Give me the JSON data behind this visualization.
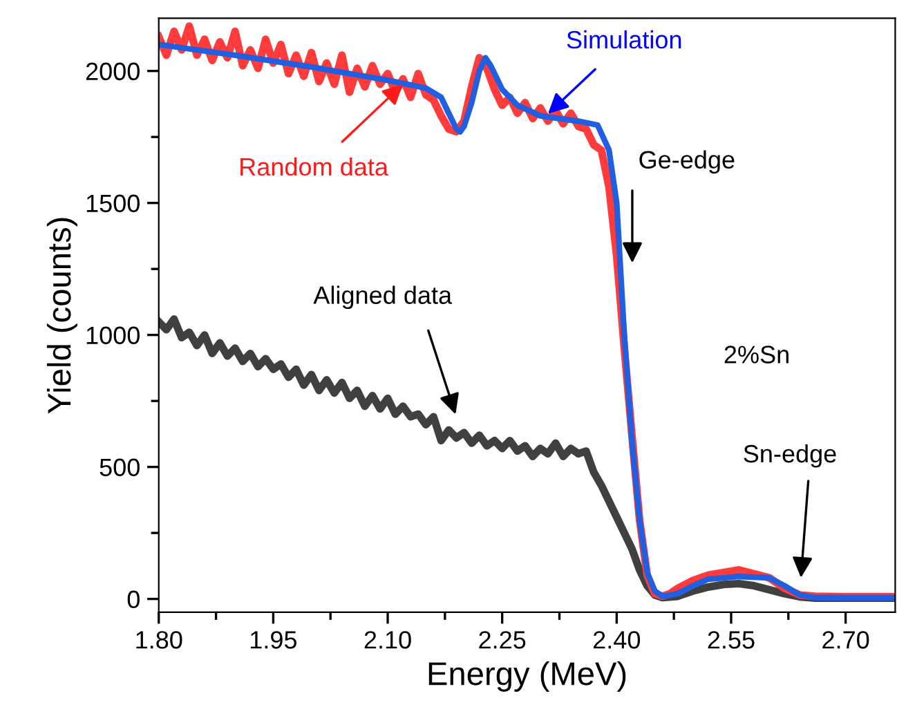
{
  "chart_data": {
    "type": "line",
    "xlabel": "Energy (MeV)",
    "ylabel": "Yield (counts)",
    "xlim": [
      1.8,
      2.765
    ],
    "xticks": [
      {
        "value": 1.8,
        "label": "1.80"
      },
      1.95,
      {
        "value": 2.1,
        "label": "2.10"
      },
      2.25,
      {
        "value": 2.4,
        "label": "2.40"
      },
      2.55,
      {
        "value": 2.7,
        "label": "2.70"
      }
    ],
    "ylim": [
      -50,
      2200
    ],
    "yticks": [
      0,
      500,
      1000,
      1500,
      2000
    ],
    "grid": false,
    "marker": "none",
    "line_style": "solid",
    "series": [
      {
        "color": "#404040",
        "x": [
          1.8,
          1.81,
          1.82,
          1.83,
          1.84,
          1.85,
          1.86,
          1.87,
          1.88,
          1.89,
          1.9,
          1.91,
          1.92,
          1.93,
          1.94,
          1.95,
          1.96,
          1.97,
          1.98,
          1.99,
          2.0,
          2.01,
          2.02,
          2.03,
          2.04,
          2.05,
          2.06,
          2.07,
          2.08,
          2.09,
          2.1,
          2.11,
          2.12,
          2.13,
          2.14,
          2.15,
          2.16,
          2.17,
          2.18,
          2.19,
          2.2,
          2.21,
          2.22,
          2.23,
          2.24,
          2.25,
          2.26,
          2.27,
          2.28,
          2.29,
          2.3,
          2.31,
          2.32,
          2.33,
          2.34,
          2.35,
          2.36,
          2.37,
          2.38,
          2.39,
          2.4,
          2.41,
          2.42,
          2.43,
          2.44,
          2.45,
          2.46,
          2.48,
          2.5,
          2.52,
          2.54,
          2.56,
          2.58,
          2.6,
          2.62,
          2.64,
          2.66,
          2.765
        ],
        "values": [
          1050,
          1020,
          1060,
          990,
          1010,
          960,
          1000,
          930,
          970,
          920,
          950,
          900,
          930,
          880,
          910,
          870,
          890,
          840,
          870,
          810,
          850,
          790,
          830,
          780,
          820,
          760,
          790,
          730,
          770,
          720,
          760,
          700,
          730,
          690,
          700,
          660,
          690,
          600,
          640,
          610,
          630,
          590,
          620,
          580,
          600,
          570,
          600,
          560,
          580,
          540,
          570,
          550,
          590,
          540,
          570,
          550,
          560,
          480,
          430,
          370,
          310,
          250,
          190,
          110,
          50,
          15,
          5,
          10,
          30,
          45,
          55,
          58,
          50,
          35,
          20,
          8,
          3,
          3
        ]
      },
      {
        "color": "#ff3b3b",
        "x": [
          1.8,
          1.81,
          1.82,
          1.83,
          1.84,
          1.85,
          1.86,
          1.87,
          1.88,
          1.89,
          1.9,
          1.91,
          1.92,
          1.93,
          1.94,
          1.95,
          1.96,
          1.97,
          1.98,
          1.99,
          2.0,
          2.01,
          2.02,
          2.03,
          2.04,
          2.05,
          2.06,
          2.07,
          2.08,
          2.09,
          2.1,
          2.11,
          2.12,
          2.13,
          2.14,
          2.15,
          2.16,
          2.17,
          2.18,
          2.19,
          2.2,
          2.21,
          2.22,
          2.23,
          2.24,
          2.25,
          2.26,
          2.27,
          2.28,
          2.29,
          2.3,
          2.31,
          2.32,
          2.33,
          2.34,
          2.35,
          2.36,
          2.37,
          2.38,
          2.39,
          2.4,
          2.41,
          2.42,
          2.43,
          2.44,
          2.45,
          2.46,
          2.47,
          2.48,
          2.5,
          2.52,
          2.54,
          2.56,
          2.58,
          2.6,
          2.62,
          2.64,
          2.66,
          2.7,
          2.765
        ],
        "values": [
          2130,
          2060,
          2150,
          2080,
          2170,
          2060,
          2120,
          2040,
          2110,
          2050,
          2150,
          2020,
          2080,
          2010,
          2120,
          2030,
          2100,
          1990,
          2060,
          1980,
          2070,
          1960,
          2030,
          1950,
          2060,
          1920,
          2010,
          1940,
          2020,
          1950,
          1990,
          1920,
          1970,
          1900,
          1990,
          1910,
          1890,
          1830,
          1780,
          1770,
          1810,
          1940,
          2050,
          2010,
          1930,
          1870,
          1900,
          1840,
          1880,
          1820,
          1860,
          1810,
          1850,
          1800,
          1840,
          1790,
          1780,
          1720,
          1700,
          1560,
          1300,
          950,
          620,
          300,
          90,
          20,
          10,
          20,
          40,
          70,
          90,
          100,
          110,
          95,
          80,
          40,
          15,
          10,
          8,
          8
        ]
      },
      {
        "color": "#1f5fe0",
        "x": [
          1.8,
          1.9,
          2.0,
          2.1,
          2.15,
          2.17,
          2.18,
          2.19,
          2.195,
          2.2,
          2.21,
          2.22,
          2.228,
          2.235,
          2.25,
          2.27,
          2.3,
          2.35,
          2.375,
          2.39,
          2.4,
          2.41,
          2.42,
          2.43,
          2.44,
          2.45,
          2.46,
          2.48,
          2.5,
          2.52,
          2.56,
          2.6,
          2.62,
          2.64,
          2.66,
          2.765
        ],
        "values": [
          2100,
          2060,
          2015,
          1965,
          1935,
          1900,
          1840,
          1780,
          1770,
          1790,
          1880,
          2000,
          2050,
          2020,
          1930,
          1870,
          1830,
          1810,
          1795,
          1700,
          1500,
          1000,
          600,
          300,
          100,
          30,
          10,
          20,
          50,
          75,
          85,
          80,
          50,
          15,
          5,
          5
        ]
      }
    ],
    "annotations": [
      {
        "text": "Random data",
        "x": 2.12,
        "y": 1950
      },
      {
        "text": "Simulation",
        "x": 2.31,
        "y": 1838
      },
      "Ge-edge",
      "Aligned data",
      "Sn-edge",
      "2%Sn"
    ]
  }
}
